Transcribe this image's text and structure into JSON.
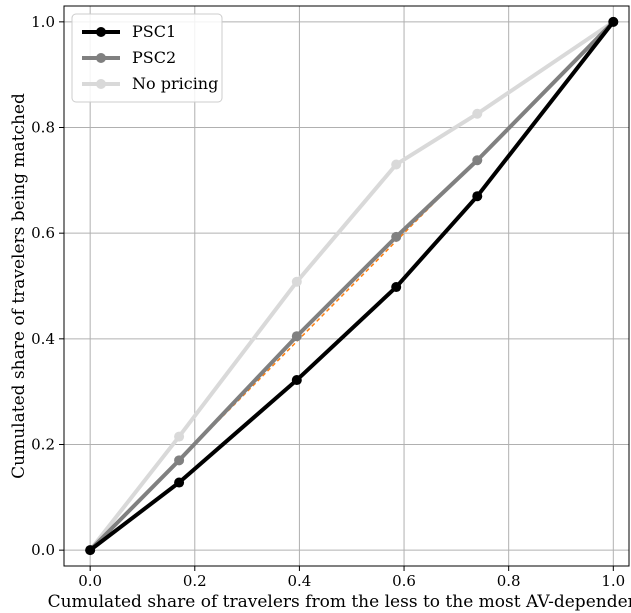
{
  "chart_data": {
    "type": "line",
    "title": "",
    "xlabel": "Cumulated share of travelers from the less to the most AV-dependent",
    "ylabel": "Cumulated share of travelers being matched",
    "xlim": [
      -0.05,
      1.03
    ],
    "ylim": [
      -0.03,
      1.03
    ],
    "xticks": [
      0.0,
      0.2,
      0.4,
      0.6,
      0.8,
      1.0
    ],
    "yticks": [
      0.0,
      0.2,
      0.4,
      0.6,
      0.8,
      1.0
    ],
    "xtick_labels": [
      "0.0",
      "0.2",
      "0.4",
      "0.6",
      "0.8",
      "1.0"
    ],
    "ytick_labels": [
      "0.0",
      "0.2",
      "0.4",
      "0.6",
      "0.8",
      "1.0"
    ],
    "grid": true,
    "legend_position": "top-left",
    "series": [
      {
        "name": "No pricing",
        "color": "#d9d9d9",
        "x": [
          0.0,
          0.17,
          0.395,
          0.585,
          0.74,
          1.0
        ],
        "y": [
          0.0,
          0.215,
          0.508,
          0.73,
          0.826,
          1.0
        ]
      },
      {
        "name": "",
        "color": "#ff7f0e",
        "dashed": true,
        "x": [
          0.0,
          1.0
        ],
        "y": [
          0.0,
          1.0
        ]
      },
      {
        "name": "PSC2",
        "color": "#808080",
        "x": [
          0.0,
          0.17,
          0.395,
          0.585,
          0.74,
          1.0
        ],
        "y": [
          0.0,
          0.17,
          0.405,
          0.593,
          0.738,
          1.0
        ]
      },
      {
        "name": "PSC1",
        "color": "#000000",
        "x": [
          0.0,
          0.17,
          0.395,
          0.585,
          0.74,
          1.0
        ],
        "y": [
          0.0,
          0.128,
          0.322,
          0.498,
          0.67,
          1.0
        ]
      }
    ],
    "legend_order": [
      "PSC1",
      "PSC2",
      "No pricing"
    ]
  }
}
